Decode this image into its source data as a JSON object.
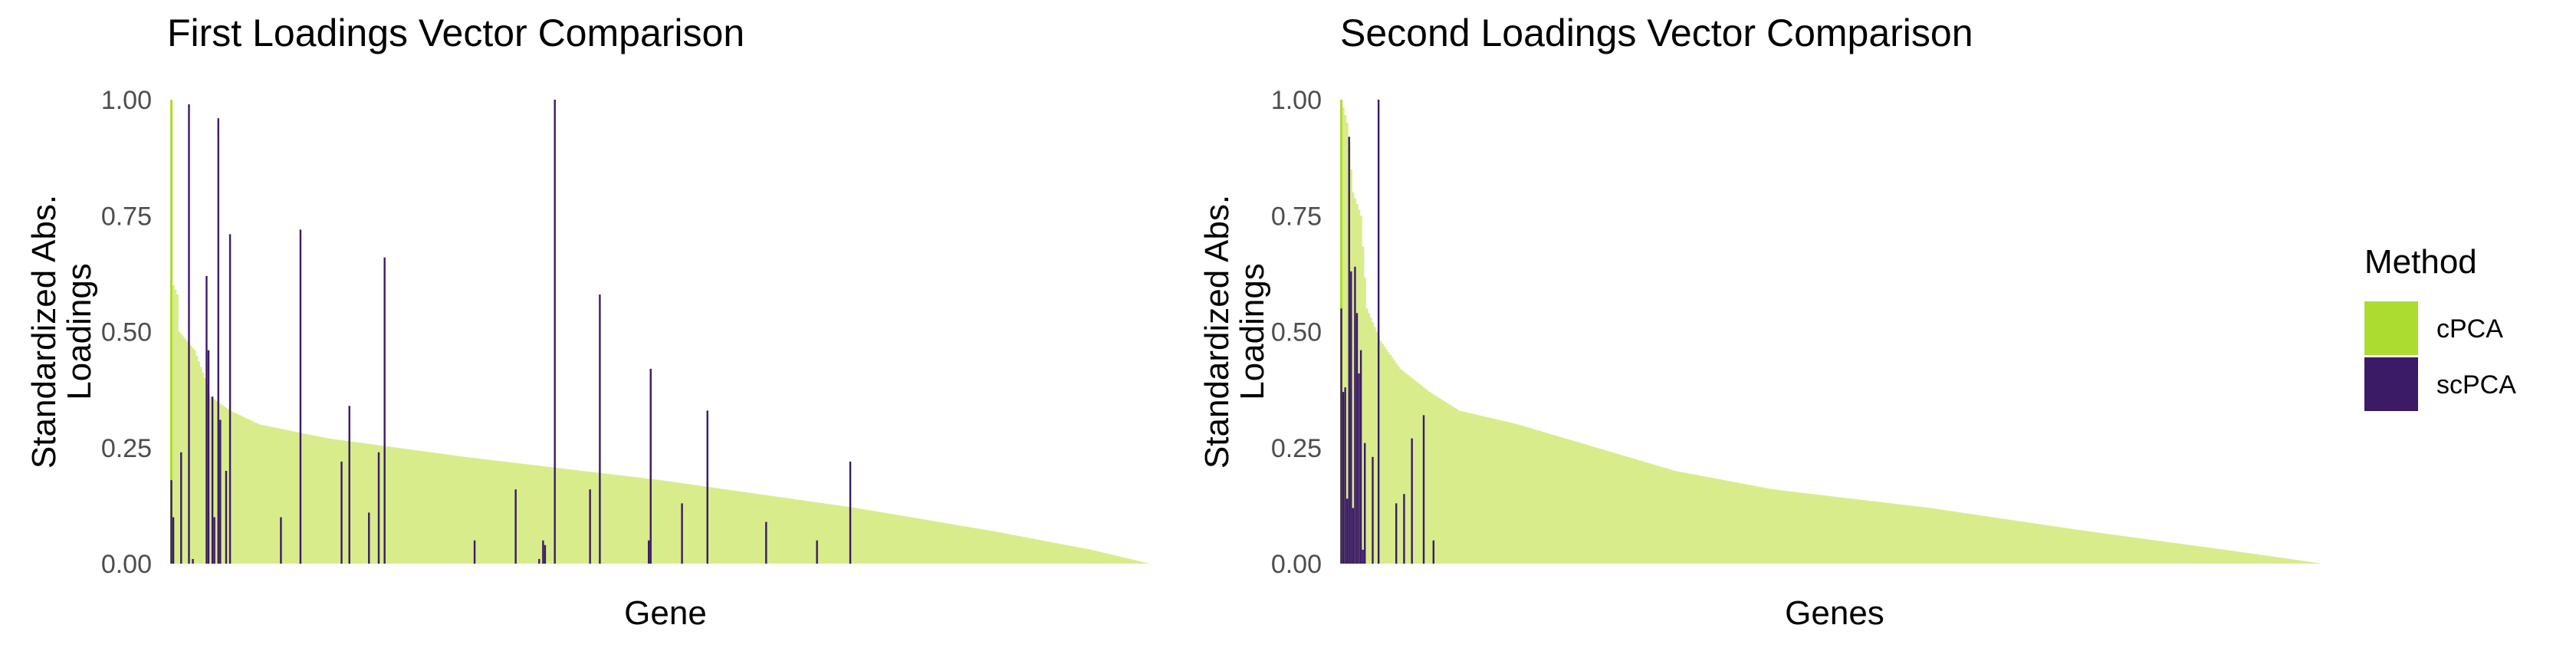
{
  "legend": {
    "title": "Method",
    "items": [
      {
        "label": "cPCA",
        "color": "#addc30"
      },
      {
        "label": "scPCA",
        "color": "#3b1a66"
      }
    ]
  },
  "colors": {
    "cpca_fill": "#d8ec8c",
    "cpca_spike": "#addc30",
    "scpca": "#3b1a66"
  },
  "chart_data": [
    {
      "type": "bar",
      "title": "First Loadings Vector Comparison",
      "xlabel": "Gene",
      "ylabel": "Standardized Abs.\nLoadings",
      "ylim": [
        0,
        1
      ],
      "yticks": [
        "0.00",
        "0.25",
        "0.50",
        "0.75",
        "1.00"
      ],
      "n_genes": 500,
      "grid": false,
      "series": [
        {
          "name": "cPCA",
          "description": "sorted descending",
          "profile": [
            [
              0,
              1.0
            ],
            [
              1,
              0.6
            ],
            [
              3,
              0.58
            ],
            [
              4,
              0.5
            ],
            [
              12,
              0.46
            ],
            [
              17,
              0.4
            ],
            [
              20,
              0.36
            ],
            [
              30,
              0.33
            ],
            [
              45,
              0.3
            ],
            [
              80,
              0.27
            ],
            [
              150,
              0.23
            ],
            [
              250,
              0.18
            ],
            [
              350,
              0.12
            ],
            [
              420,
              0.07
            ],
            [
              470,
              0.03
            ],
            [
              500,
              0.0
            ]
          ]
        },
        {
          "name": "scPCA",
          "points": [
            [
              0,
              0.18
            ],
            [
              1,
              0.1
            ],
            [
              5,
              0.24
            ],
            [
              9,
              0.99
            ],
            [
              11,
              0.01
            ],
            [
              18,
              0.62
            ],
            [
              19,
              0.46
            ],
            [
              21,
              0.36
            ],
            [
              22,
              0.1
            ],
            [
              24,
              0.96
            ],
            [
              25,
              0.31
            ],
            [
              28,
              0.2
            ],
            [
              30,
              0.71
            ],
            [
              56,
              0.1
            ],
            [
              66,
              0.72
            ],
            [
              87,
              0.22
            ],
            [
              91,
              0.34
            ],
            [
              101,
              0.11
            ],
            [
              106,
              0.24
            ],
            [
              109,
              0.66
            ],
            [
              155,
              0.05
            ],
            [
              176,
              0.16
            ],
            [
              188,
              0.01
            ],
            [
              190,
              0.05
            ],
            [
              191,
              0.04
            ],
            [
              196,
              1.0
            ],
            [
              214,
              0.16
            ],
            [
              219,
              0.58
            ],
            [
              244,
              0.05
            ],
            [
              245,
              0.42
            ],
            [
              261,
              0.13
            ],
            [
              274,
              0.33
            ],
            [
              304,
              0.09
            ],
            [
              330,
              0.05
            ],
            [
              347,
              0.22
            ]
          ]
        }
      ]
    },
    {
      "type": "bar",
      "title": "Second Loadings Vector Comparison",
      "xlabel": "Genes",
      "ylabel": "Standardized Abs.\nLoadings",
      "ylim": [
        0,
        1
      ],
      "yticks": [
        "0.00",
        "0.25",
        "0.50",
        "0.75",
        "1.00"
      ],
      "n_genes": 500,
      "grid": false,
      "series": [
        {
          "name": "cPCA",
          "description": "sorted descending",
          "profile": [
            [
              0,
              1.0
            ],
            [
              3,
              0.95
            ],
            [
              6,
              0.8
            ],
            [
              10,
              0.75
            ],
            [
              13,
              0.55
            ],
            [
              20,
              0.48
            ],
            [
              30,
              0.42
            ],
            [
              45,
              0.37
            ],
            [
              60,
              0.33
            ],
            [
              90,
              0.3
            ],
            [
              130,
              0.25
            ],
            [
              170,
              0.2
            ],
            [
              220,
              0.16
            ],
            [
              300,
              0.12
            ],
            [
              380,
              0.07
            ],
            [
              450,
              0.03
            ],
            [
              500,
              0.0
            ]
          ]
        },
        {
          "name": "scPCA",
          "points": [
            [
              0,
              0.55
            ],
            [
              1,
              0.37
            ],
            [
              2,
              0.38
            ],
            [
              3,
              0.14
            ],
            [
              4,
              0.92
            ],
            [
              5,
              0.63
            ],
            [
              6,
              0.12
            ],
            [
              7,
              0.64
            ],
            [
              8,
              0.54
            ],
            [
              9,
              0.41
            ],
            [
              10,
              0.46
            ],
            [
              11,
              0.03
            ],
            [
              12,
              0.26
            ],
            [
              16,
              0.23
            ],
            [
              18,
              0.0
            ],
            [
              19,
              1.0
            ],
            [
              28,
              0.13
            ],
            [
              32,
              0.15
            ],
            [
              36,
              0.27
            ],
            [
              42,
              0.32
            ],
            [
              47,
              0.05
            ]
          ]
        }
      ]
    }
  ]
}
